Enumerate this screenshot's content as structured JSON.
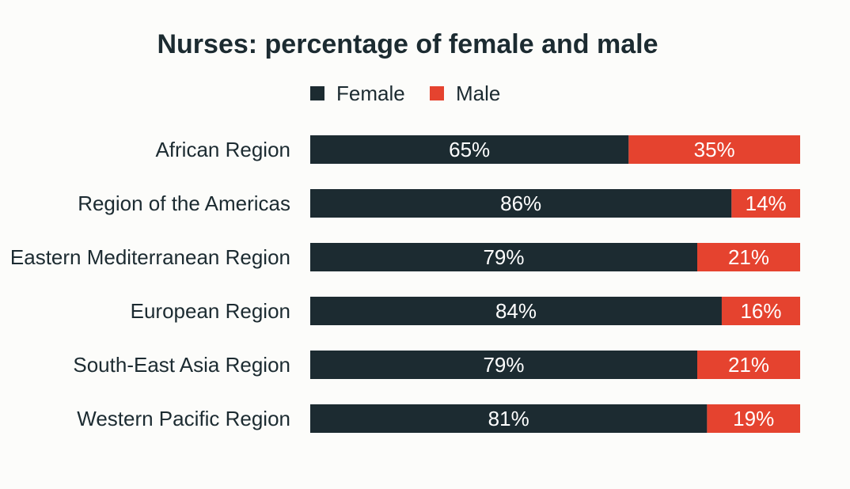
{
  "chart_data": {
    "type": "bar",
    "stacked": true,
    "orientation": "horizontal",
    "title": "Nurses: percentage of female and male",
    "legend_position": "top",
    "categories": [
      "African Region",
      "Region of the Americas",
      "Eastern Mediterranean Region",
      "European Region",
      "South-East Asia Region",
      "Western Pacific Region"
    ],
    "series": [
      {
        "name": "Female",
        "color": "#1c2b31",
        "values": [
          65,
          86,
          79,
          84,
          79,
          81
        ]
      },
      {
        "name": "Male",
        "color": "#e5432f",
        "values": [
          35,
          14,
          21,
          16,
          21,
          19
        ]
      }
    ],
    "value_labels": [
      [
        "65%",
        "86%",
        "79%",
        "84%",
        "79%",
        "81%"
      ],
      [
        "35%",
        "14%",
        "21%",
        "16%",
        "21%",
        "19%"
      ]
    ],
    "xlim": [
      0,
      100
    ],
    "grid": false
  }
}
